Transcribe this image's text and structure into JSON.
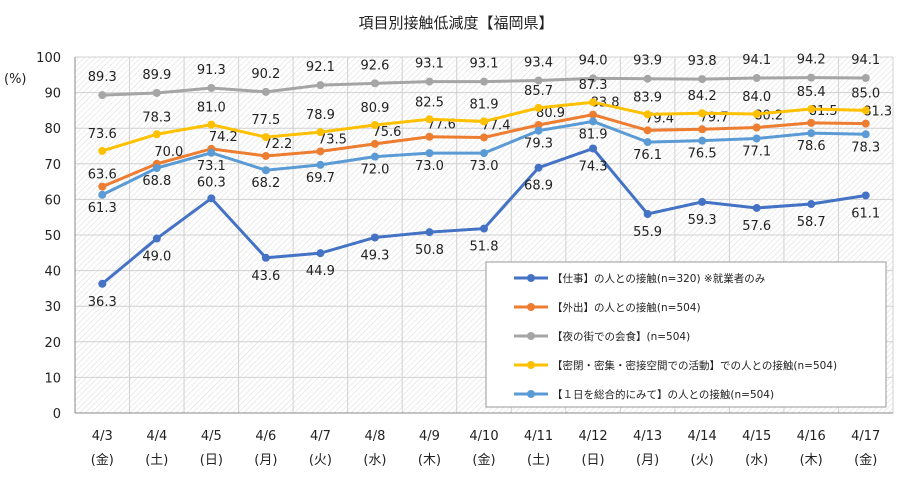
{
  "chart_data": {
    "type": "line",
    "title": "項目別接触低減度【福岡県】",
    "ylabel": "(%)",
    "ylim": [
      0,
      100
    ],
    "yticks": [
      0,
      10,
      20,
      30,
      40,
      50,
      60,
      70,
      80,
      90,
      100
    ],
    "grid": true,
    "legend_position": "bottom-right",
    "categories": [
      "4/3",
      "4/4",
      "4/5",
      "4/6",
      "4/7",
      "4/8",
      "4/9",
      "4/10",
      "4/11",
      "4/12",
      "4/13",
      "4/14",
      "4/15",
      "4/16",
      "4/17"
    ],
    "weekdays": [
      "(金)",
      "(土)",
      "(日)",
      "(月)",
      "(火)",
      "(水)",
      "(木)",
      "(金)",
      "(土)",
      "(日)",
      "(月)",
      "(火)",
      "(水)",
      "(木)",
      "(金)"
    ],
    "series": [
      {
        "name": "【仕事】の人との接触(n=320) ※就業者のみ",
        "color": "#4472c4",
        "values": [
          36.3,
          49.0,
          60.3,
          43.6,
          44.9,
          49.3,
          50.8,
          51.8,
          68.9,
          74.3,
          55.9,
          59.3,
          57.6,
          58.7,
          61.1
        ]
      },
      {
        "name": "【外出】の人との接触(n=504)",
        "color": "#ed7d31",
        "values": [
          63.6,
          70.0,
          74.2,
          72.2,
          73.5,
          75.6,
          77.6,
          77.4,
          80.9,
          83.8,
          79.4,
          79.7,
          80.2,
          81.5,
          81.3
        ]
      },
      {
        "name": "【夜の街での会食】(n=504)",
        "color": "#a5a5a5",
        "values": [
          89.3,
          89.9,
          91.3,
          90.2,
          92.1,
          92.6,
          93.1,
          93.1,
          93.4,
          94.0,
          93.9,
          93.8,
          94.1,
          94.2,
          94.1
        ]
      },
      {
        "name": "【密閉・密集・密接空間での活動】での人との接触(n=504)",
        "color": "#ffc000",
        "values": [
          73.6,
          78.3,
          81.0,
          77.5,
          78.9,
          80.9,
          82.5,
          81.9,
          85.7,
          87.3,
          83.9,
          84.2,
          84.0,
          85.4,
          85.0
        ]
      },
      {
        "name": "【１日を総合的にみて】の人との接触(n=504)",
        "color": "#5b9bd5",
        "values": [
          61.3,
          68.8,
          73.1,
          68.2,
          69.7,
          72.0,
          73.0,
          73.0,
          79.3,
          81.9,
          76.1,
          76.5,
          77.1,
          78.6,
          78.3
        ]
      }
    ]
  }
}
